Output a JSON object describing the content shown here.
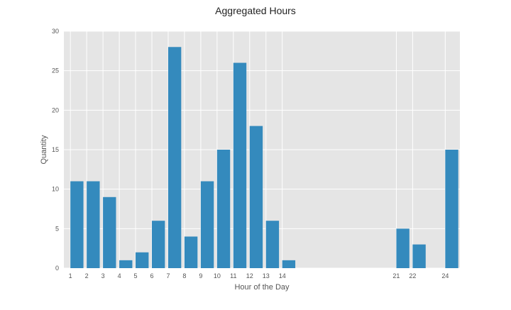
{
  "chart_data": {
    "type": "bar",
    "title": "Aggregated Hours",
    "xlabel": "Hour of the Day",
    "ylabel": "Quantity",
    "x": [
      1,
      2,
      3,
      4,
      5,
      6,
      7,
      8,
      9,
      10,
      11,
      12,
      13,
      14,
      21,
      22,
      24
    ],
    "values": [
      11,
      11,
      9,
      1,
      2,
      6,
      28,
      4,
      11,
      15,
      26,
      18,
      6,
      1,
      5,
      3,
      15
    ],
    "xticks": [
      "1",
      "2",
      "3",
      "4",
      "5",
      "6",
      "7",
      "8",
      "9",
      "10",
      "11",
      "12",
      "13",
      "14",
      "21",
      "22",
      "24"
    ],
    "yticks": [
      "0",
      "5",
      "10",
      "15",
      "20",
      "25",
      "30"
    ],
    "ylim": [
      0,
      30
    ],
    "xlim": [
      0.6,
      24.9
    ],
    "grid": true,
    "bar_color": "#348abd",
    "plot_background": "#e5e5e5"
  }
}
